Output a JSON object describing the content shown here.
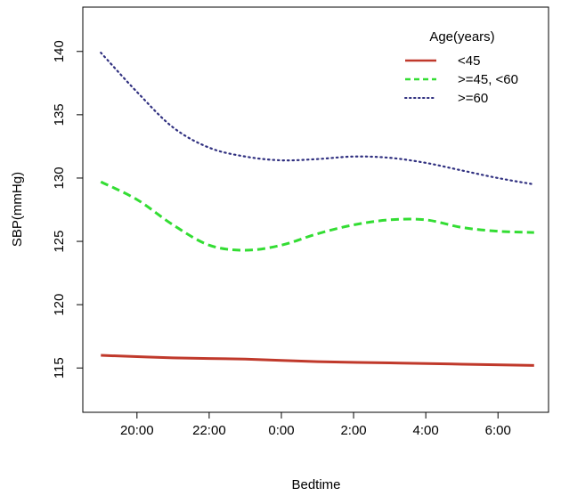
{
  "chart_data": {
    "type": "line",
    "title": "",
    "xlabel": "Bedtime",
    "ylabel": "SBP(mmHg)",
    "x_unit": "hours after midnight (continuous clock time)",
    "xlim": [
      -5.5,
      7.4
    ],
    "ylim": [
      111.5,
      143.5
    ],
    "x_ticks": [
      {
        "value": -4,
        "label": "20:00"
      },
      {
        "value": -2,
        "label": "22:00"
      },
      {
        "value": 0,
        "label": "0:00"
      },
      {
        "value": 2,
        "label": "2:00"
      },
      {
        "value": 4,
        "label": "4:00"
      },
      {
        "value": 6,
        "label": "6:00"
      }
    ],
    "y_ticks": [
      {
        "value": 115,
        "label": "115"
      },
      {
        "value": 120,
        "label": "120"
      },
      {
        "value": 125,
        "label": "125"
      },
      {
        "value": 130,
        "label": "130"
      },
      {
        "value": 135,
        "label": "135"
      },
      {
        "value": 140,
        "label": "140"
      }
    ],
    "legend": {
      "title": "Age(years)",
      "position": "top-right"
    },
    "series": [
      {
        "name": "<45",
        "color": "#c0392b",
        "style": "solid",
        "points": [
          [
            -5,
            116.0
          ],
          [
            -3,
            115.8
          ],
          [
            -1,
            115.7
          ],
          [
            1,
            115.5
          ],
          [
            3,
            115.4
          ],
          [
            5,
            115.3
          ],
          [
            7,
            115.2
          ]
        ]
      },
      {
        "name": ">=45, <60",
        "color": "#33dd33",
        "style": "dashed",
        "points": [
          [
            -5,
            129.7
          ],
          [
            -4,
            128.3
          ],
          [
            -3,
            126.3
          ],
          [
            -2,
            124.7
          ],
          [
            -1,
            124.3
          ],
          [
            0,
            124.7
          ],
          [
            1,
            125.6
          ],
          [
            2,
            126.3
          ],
          [
            3,
            126.7
          ],
          [
            4,
            126.7
          ],
          [
            5,
            126.1
          ],
          [
            6,
            125.8
          ],
          [
            7,
            125.7
          ]
        ]
      },
      {
        "name": ">=60",
        "color": "#303080",
        "style": "dotted",
        "points": [
          [
            -5,
            139.9
          ],
          [
            -4,
            136.8
          ],
          [
            -3,
            134.0
          ],
          [
            -2,
            132.4
          ],
          [
            -1,
            131.7
          ],
          [
            0,
            131.4
          ],
          [
            1,
            131.5
          ],
          [
            2,
            131.7
          ],
          [
            3,
            131.6
          ],
          [
            4,
            131.2
          ],
          [
            5,
            130.6
          ],
          [
            6,
            130.0
          ],
          [
            7,
            129.5
          ]
        ]
      }
    ]
  }
}
